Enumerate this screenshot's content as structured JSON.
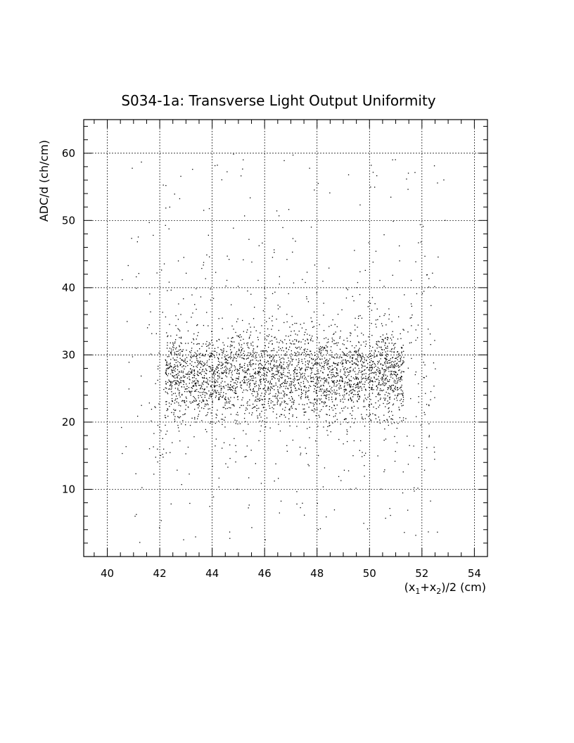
{
  "chart_data": {
    "type": "scatter",
    "title": "S034-1a: Transverse Light Output Uniformity",
    "xlabel": "(x",
    "xlabel_sub1": "1",
    "xlabel_mid": "+x",
    "xlabel_sub2": "2",
    "xlabel_end": ")/2 (cm)",
    "ylabel": "ADC/d (ch/cm)",
    "xlim": [
      39.1,
      54.5
    ],
    "ylim": [
      0,
      65
    ],
    "x_ticks": [
      40,
      42,
      44,
      46,
      48,
      50,
      52,
      54
    ],
    "y_ticks": [
      10,
      20,
      30,
      40,
      50,
      60
    ],
    "x_tick_labels": [
      "40",
      "42",
      "44",
      "46",
      "48",
      "50",
      "52",
      "54"
    ],
    "y_tick_labels": [
      "10",
      "20",
      "30",
      "40",
      "50",
      "60"
    ],
    "grid": true,
    "distribution": {
      "count": 3500,
      "x_core": [
        42.0,
        51.5
      ],
      "y_mean": 27,
      "y_sd": 3.2,
      "note_clusters": "dense band 22-33"
    },
    "series_color": "#000000"
  }
}
